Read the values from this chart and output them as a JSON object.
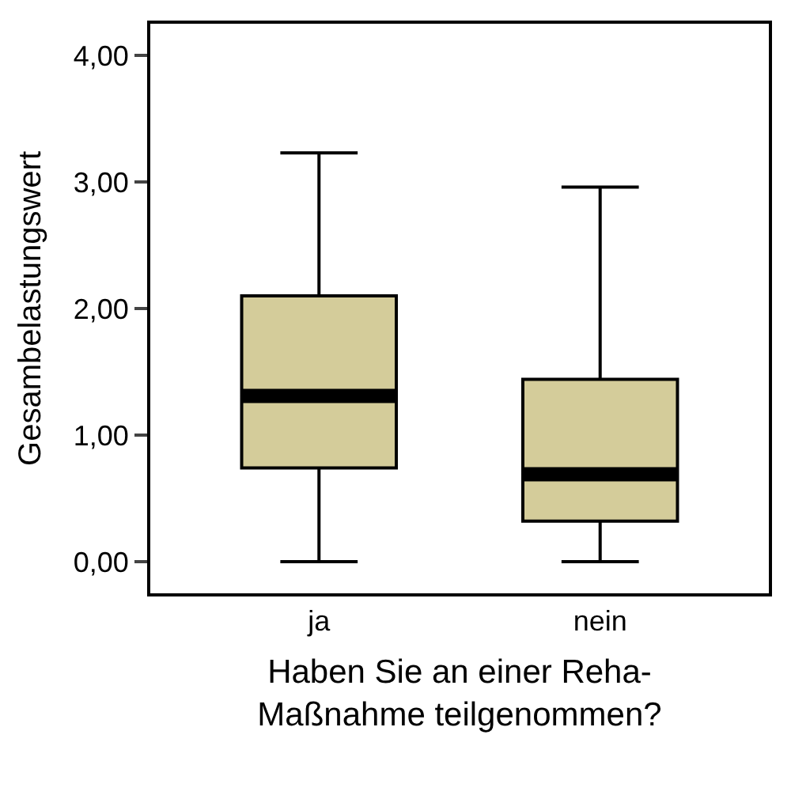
{
  "chart_data": {
    "type": "box",
    "xlabel": "Haben Sie an einer Reha-\nMaßnahme teilgenommen?",
    "ylabel": "Gesambelastungswert",
    "categories": [
      "ja",
      "nein"
    ],
    "boxes": [
      {
        "low": 0,
        "q1": 0.74,
        "median": 1.31,
        "q3": 2.1,
        "high": 3.23
      },
      {
        "low": 0,
        "q1": 0.32,
        "median": 0.69,
        "q3": 1.44,
        "high": 2.96
      }
    ],
    "color": "#d4cc9a",
    "ylim": [
      -0.25,
      4.25
    ],
    "yticks": [
      {
        "value": 0,
        "label": "0,00"
      },
      {
        "value": 1,
        "label": "1,00"
      },
      {
        "value": 2,
        "label": "2,00"
      },
      {
        "value": 3,
        "label": "3,00"
      },
      {
        "value": 4,
        "label": "4,00"
      }
    ],
    "legend": false
  }
}
